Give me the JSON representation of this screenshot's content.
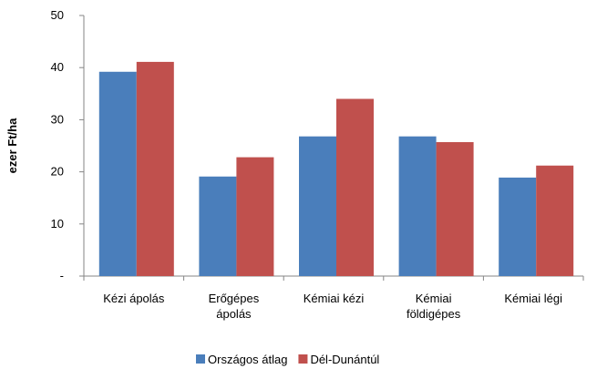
{
  "chart_data": {
    "type": "bar",
    "y_label": "ezer Ft/ha",
    "categories": [
      "Kézi ápolás",
      "Erőgépes ápolás",
      "Kémiai kézi",
      "Kémiai földigépes",
      "Kémiai légi"
    ],
    "series": [
      {
        "name": "Országos átlag",
        "color": "#4a7ebb",
        "values": [
          39.2,
          19.1,
          26.8,
          26.8,
          18.9
        ]
      },
      {
        "name": "Dél-Dunántúl",
        "color": "#c0504d",
        "values": [
          41.1,
          22.8,
          34.0,
          25.7,
          21.2
        ]
      }
    ],
    "ylim": [
      0,
      50
    ],
    "yticks": [
      {
        "value": 0,
        "label": "-"
      },
      10,
      20,
      30,
      40,
      50
    ],
    "grid": false,
    "legend": "bottom"
  }
}
